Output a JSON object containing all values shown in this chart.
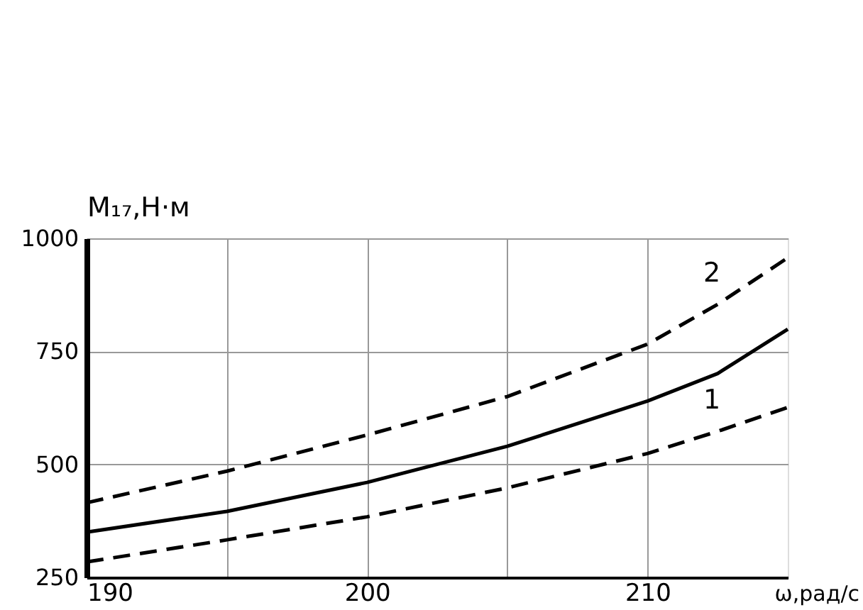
{
  "chart_data": {
    "type": "line",
    "xlabel": "ω,рад/с",
    "ylabel": "M₁₇,Н·м",
    "x": [
      190,
      195,
      200,
      205,
      210,
      212.5,
      215
    ],
    "xlim": [
      190,
      215
    ],
    "ylim": [
      250,
      1000
    ],
    "xticks": [
      190,
      {
        "value": 195,
        "label": null
      },
      200,
      {
        "value": 205,
        "label": null
      },
      210
    ],
    "yticks": [
      250,
      500,
      750,
      1000
    ],
    "grid": true,
    "legend": false,
    "marker": "none",
    "series": [
      {
        "name": "2",
        "color": "#000000",
        "line_style": "dashed",
        "values": [
          415,
          485,
          565,
          650,
          766,
          854,
          957
        ]
      },
      {
        "color": "#000000",
        "line_style": "solid",
        "values": [
          350,
          396,
          460,
          540,
          640,
          701,
          799
        ]
      },
      {
        "name": "1",
        "color": "#000000",
        "line_style": "dashed",
        "values": [
          284,
          333,
          384,
          448,
          524,
          573,
          626
        ]
      }
    ]
  }
}
